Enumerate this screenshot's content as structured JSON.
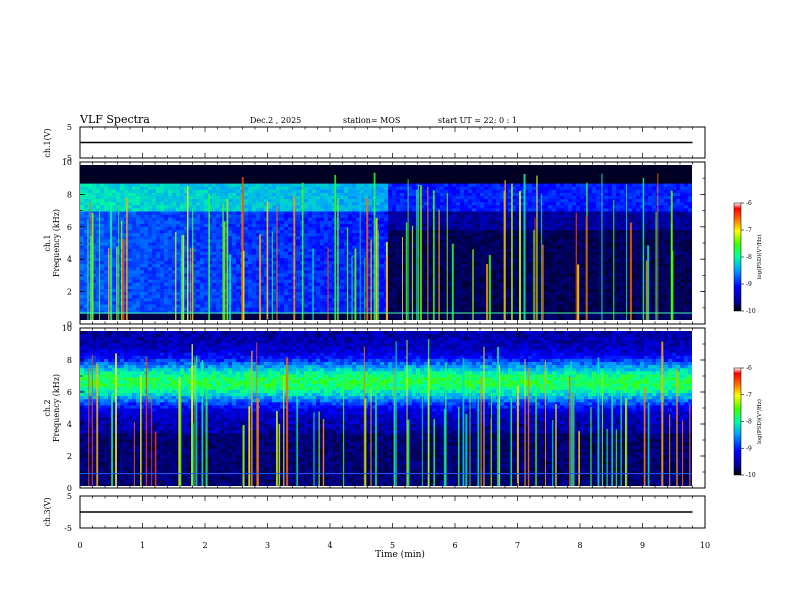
{
  "header": {
    "title": "VLF Spectra",
    "date": "Dec.2 , 2025",
    "station": "station= MOS",
    "start": "start  UT =  22: 0  : 1"
  },
  "chart_data": [
    {
      "type": "line",
      "ylabel": "ch.1(V)",
      "ylim": [
        -5,
        5
      ],
      "yticks": [
        "5",
        "-5"
      ],
      "series": [
        {
          "x": [
            0,
            9.8
          ],
          "y": [
            0,
            0
          ]
        }
      ]
    },
    {
      "type": "heatmap",
      "ylabel": "ch.1 Frequency (kHz)",
      "ylim": [
        0,
        10
      ],
      "yticks": [
        "0",
        "2",
        "4",
        "6",
        "8",
        "10"
      ],
      "colorbar": {
        "label": "log(PSD)(V²/Hz)",
        "range": [
          -10,
          -6
        ],
        "ticks": [
          "-6",
          "-7",
          "-8",
          "-9",
          "-10"
        ]
      }
    },
    {
      "type": "heatmap",
      "ylabel": "ch.2 Frequency (kHz)",
      "ylim": [
        0,
        10
      ],
      "yticks": [
        "0",
        "2",
        "4",
        "6",
        "8",
        "10"
      ],
      "colorbar": {
        "label": "log(PSD)(V²/Hz)",
        "range": [
          -10,
          -6
        ],
        "ticks": [
          "-6",
          "-7",
          "-8",
          "-9",
          "-10"
        ]
      }
    },
    {
      "type": "line",
      "ylabel": "ch.3(V)",
      "ylim": [
        -5,
        5
      ],
      "yticks": [
        "5",
        "-5"
      ],
      "series": [
        {
          "x": [
            0,
            9.8
          ],
          "y": [
            0,
            0
          ]
        }
      ]
    }
  ],
  "xaxis": {
    "label": "Time (min)",
    "xlim": [
      0,
      10
    ],
    "ticks": [
      "0",
      "1",
      "2",
      "3",
      "4",
      "5",
      "6",
      "7",
      "8",
      "9",
      "10"
    ]
  },
  "colors": {
    "background": "#000000",
    "axis": "#000000"
  }
}
